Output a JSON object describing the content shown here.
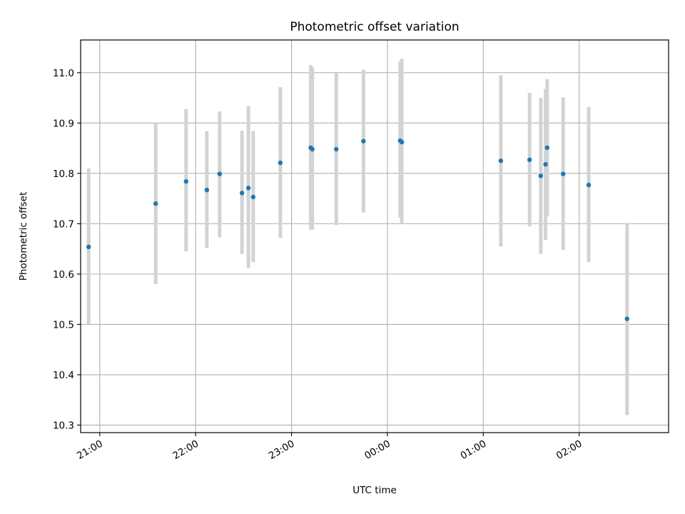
{
  "chart_data": {
    "type": "scatter",
    "title": "Photometric offset variation",
    "xlabel": "UTC time",
    "ylabel": "Photometric offset",
    "grid": true,
    "x_tick_labels": [
      "21:00",
      "22:00",
      "23:00",
      "00:00",
      "01:00",
      "02:00"
    ],
    "x_ticks": [
      "20:60",
      "21:60",
      "22:60",
      "23:60",
      "24:60",
      "25:60"
    ],
    "y_ticks": [
      "10.3",
      "10.4",
      "10.5",
      "10.6",
      "10.7",
      "10.8",
      "10.9",
      "11.0"
    ],
    "xlim": [
      "20:48",
      "26:56"
    ],
    "ylim": [
      10.285,
      11.065
    ],
    "colors": {
      "point": "#1f77b4",
      "errorbar": "#d3d3d3",
      "grid": "#b0b0b0"
    },
    "points": [
      {
        "time": "20:53",
        "y": 10.654,
        "ylow": 10.5,
        "yhigh": 10.81
      },
      {
        "time": "21:35",
        "y": 10.74,
        "ylow": 10.58,
        "yhigh": 10.9
      },
      {
        "time": "21:54",
        "y": 10.784,
        "ylow": 10.645,
        "yhigh": 10.928
      },
      {
        "time": "22:07",
        "y": 10.767,
        "ylow": 10.652,
        "yhigh": 10.884
      },
      {
        "time": "22:15",
        "y": 10.799,
        "ylow": 10.673,
        "yhigh": 10.923
      },
      {
        "time": "22:29",
        "y": 10.761,
        "ylow": 10.64,
        "yhigh": 10.885
      },
      {
        "time": "22:33",
        "y": 10.771,
        "ylow": 10.612,
        "yhigh": 10.934
      },
      {
        "time": "22:36",
        "y": 10.753,
        "ylow": 10.624,
        "yhigh": 10.884
      },
      {
        "time": "22:53",
        "y": 10.821,
        "ylow": 10.672,
        "yhigh": 10.971
      },
      {
        "time": "23:12",
        "y": 10.851,
        "ylow": 10.688,
        "yhigh": 11.015
      },
      {
        "time": "23:13",
        "y": 10.848,
        "ylow": 10.688,
        "yhigh": 11.01
      },
      {
        "time": "23:28",
        "y": 10.848,
        "ylow": 10.697,
        "yhigh": 11.0
      },
      {
        "time": "23:45",
        "y": 10.864,
        "ylow": 10.722,
        "yhigh": 11.006
      },
      {
        "time": "24:08",
        "y": 10.865,
        "ylow": 10.712,
        "yhigh": 11.023
      },
      {
        "time": "24:09",
        "y": 10.862,
        "ylow": 10.7,
        "yhigh": 11.028
      },
      {
        "time": "25:11",
        "y": 10.825,
        "ylow": 10.655,
        "yhigh": 10.995
      },
      {
        "time": "25:29",
        "y": 10.827,
        "ylow": 10.695,
        "yhigh": 10.96
      },
      {
        "time": "25:36",
        "y": 10.795,
        "ylow": 10.64,
        "yhigh": 10.95
      },
      {
        "time": "25:39",
        "y": 10.818,
        "ylow": 10.668,
        "yhigh": 10.968
      },
      {
        "time": "25:40",
        "y": 10.851,
        "ylow": 10.715,
        "yhigh": 10.987
      },
      {
        "time": "25:50",
        "y": 10.799,
        "ylow": 10.648,
        "yhigh": 10.951
      },
      {
        "time": "26:06",
        "y": 10.777,
        "ylow": 10.624,
        "yhigh": 10.932
      },
      {
        "time": "26:30",
        "y": 10.511,
        "ylow": 10.32,
        "yhigh": 10.7
      }
    ]
  }
}
